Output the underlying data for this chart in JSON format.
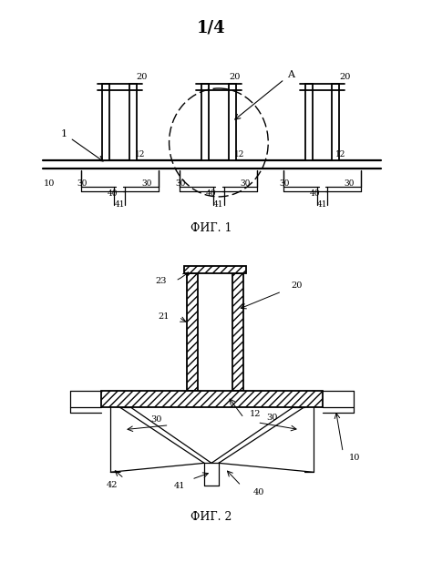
{
  "title": "1/4",
  "fig1_label": "ФИГ. 1",
  "fig2_label": "ФИГ. 2",
  "bg_color": "#ffffff"
}
